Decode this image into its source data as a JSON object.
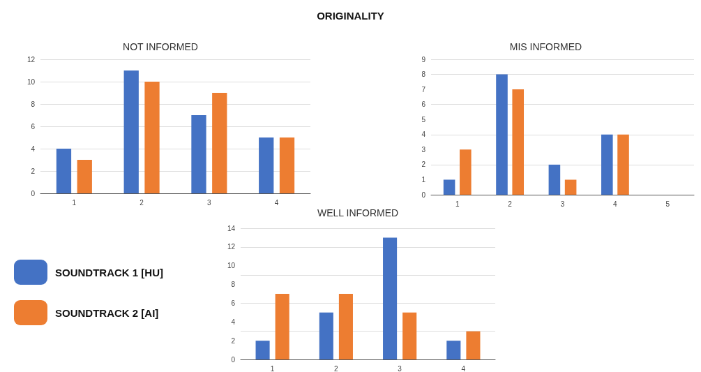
{
  "chart_data": [
    {
      "type": "other",
      "title": "ORIGINALITY"
    },
    {
      "type": "bar",
      "title": "NOT INFORMED",
      "categories": [
        "1",
        "2",
        "3",
        "4"
      ],
      "series": [
        {
          "color": "#4472c4",
          "values": [
            4,
            11,
            7,
            5
          ]
        },
        {
          "color": "#ed7d31",
          "values": [
            3,
            10,
            9,
            5
          ]
        }
      ],
      "ylim": [
        0,
        12
      ],
      "yticks": [
        0,
        2,
        4,
        6,
        8,
        10,
        12
      ],
      "grid": "y",
      "legend": false
    },
    {
      "type": "bar",
      "title": "MIS INFORMED",
      "categories": [
        "1",
        "2",
        "3",
        "4",
        "5"
      ],
      "series": [
        {
          "color": "#4472c4",
          "values": [
            1,
            8,
            2,
            4,
            0
          ]
        },
        {
          "color": "#ed7d31",
          "values": [
            3,
            7,
            1,
            4,
            0
          ]
        }
      ],
      "ylim": [
        0,
        9
      ],
      "yticks": [
        0,
        1,
        2,
        3,
        4,
        5,
        6,
        7,
        8,
        9
      ],
      "grid": "y",
      "legend": false
    },
    {
      "type": "bar",
      "title": "WELL INFORMED",
      "categories": [
        "1",
        "2",
        "3",
        "4"
      ],
      "series": [
        {
          "name": "SOUNDTRACK 1 [HU]",
          "color": "#4472c4",
          "values": [
            2,
            5,
            13,
            2
          ]
        },
        {
          "name": "SOUNDTRACK 2 [AI]",
          "color": "#ed7d31",
          "values": [
            7,
            7,
            5,
            3
          ]
        }
      ],
      "ylim": [
        0,
        14
      ],
      "yticks": [
        0,
        2,
        4,
        6,
        8,
        10,
        12,
        14
      ],
      "grid": "y",
      "legend": "left"
    }
  ]
}
